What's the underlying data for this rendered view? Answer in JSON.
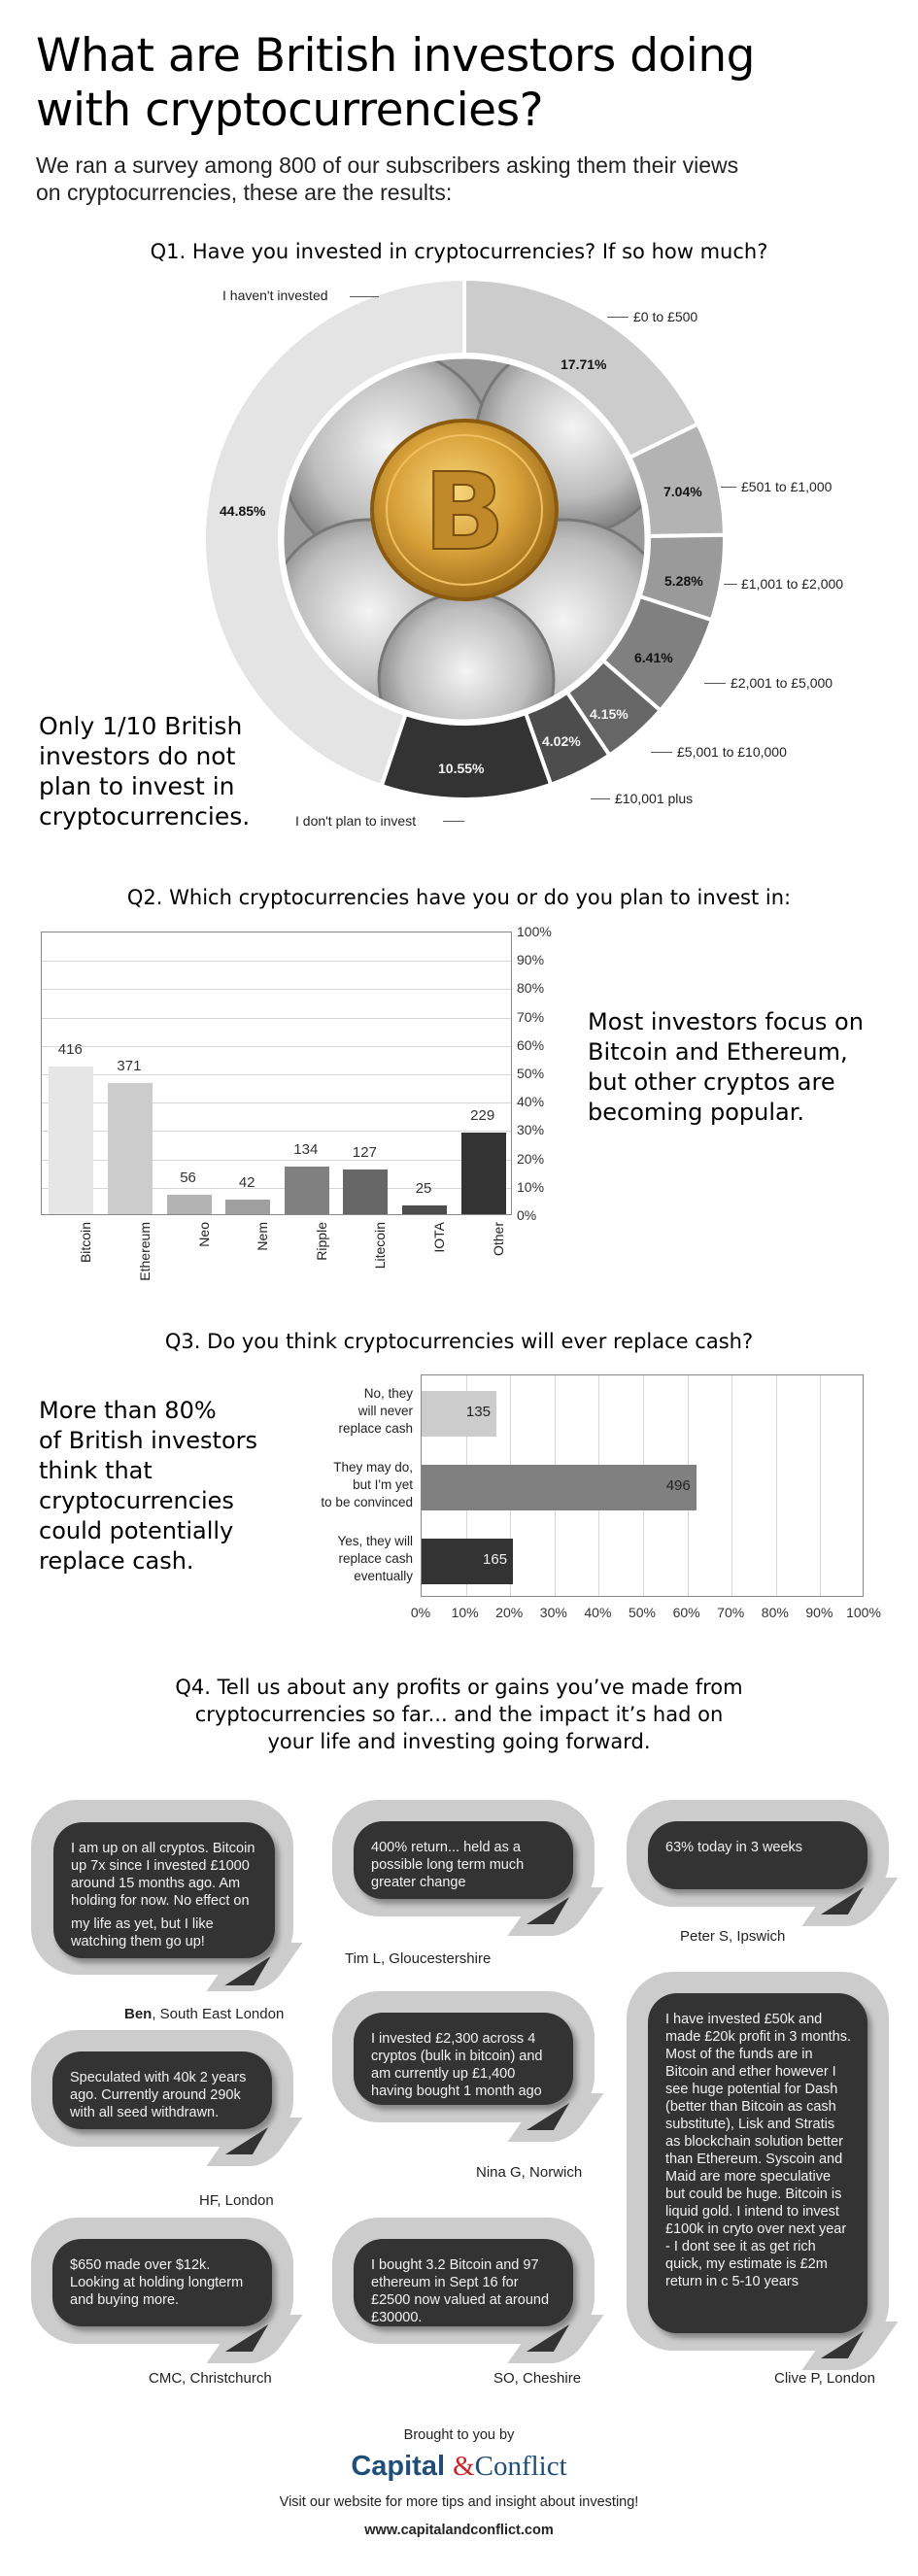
{
  "header": {
    "title_line1": "What are British investors doing",
    "title_line2": "with cryptocurrencies?",
    "subtitle_line1": "We ran a survey among 800 of our subscribers asking them their views",
    "subtitle_line2": "on cryptocurrencies, these are the results:"
  },
  "q1": {
    "title": "Q1. Have you invested in cryptocurrencies? If so how much?",
    "callout": [
      "Only 1/10 British",
      "investors do not",
      "plan to invest in",
      "cryptocurrencies."
    ],
    "center_image": "bitcoin-coins-photo",
    "segments": [
      {
        "label": "I haven't invested",
        "pct": "44.85%",
        "color": "#e4e4e4"
      },
      {
        "label": "£0 to £500",
        "pct": "17.71%",
        "color": "#cccccc"
      },
      {
        "label": "£501 to £1,000",
        "pct": "7.04%",
        "color": "#b3b3b3"
      },
      {
        "label": "£1,001 to £2,000",
        "pct": "5.28%",
        "color": "#9a9a9a"
      },
      {
        "label": "£2,001 to £5,000",
        "pct": "6.41%",
        "color": "#808080"
      },
      {
        "label": "£5,001 to £10,000",
        "pct": "4.15%",
        "color": "#666666"
      },
      {
        "label": "£10,001 plus",
        "pct": "4.02%",
        "color": "#4d4d4d"
      },
      {
        "label": "I don't plan to invest",
        "pct": "10.55%",
        "color": "#333333"
      }
    ]
  },
  "q2": {
    "title": "Q2. Which cryptocurrencies have you or do you plan to invest in:",
    "callout": [
      "Most investors focus on",
      "Bitcoin and Ethereum,",
      "but other cryptos are",
      "becoming popular."
    ],
    "yticks": [
      "100%",
      "90%",
      "80%",
      "70%",
      "60%",
      "50%",
      "40%",
      "30%",
      "20%",
      "10%",
      "0%"
    ]
  },
  "q3": {
    "title": "Q3. Do you think cryptocurrencies will ever replace cash?",
    "callout": [
      "More than 80%",
      "of British investors",
      "think that",
      "cryptocurrencies",
      "could potentially",
      "replace cash."
    ],
    "xticks": [
      "0%",
      "10%",
      "20%",
      "30%",
      "40%",
      "50%",
      "60%",
      "70%",
      "80%",
      "90%",
      "100%"
    ]
  },
  "q4": {
    "title_line1": "Q4. Tell us about any profits or gains you’ve made from",
    "title_line2": "cryptocurrencies so far... and the impact it’s had on",
    "title_line3": "your life and investing going forward.",
    "testimonials": [
      {
        "text_a": "I am up on all cryptos. Bitcoin up 7x since I invested £1000 around 15 months ago. Am holding for now. No effect on",
        "text_b": "my life as yet, but I like watching them go up!",
        "name": "Ben",
        "location": ", South East London"
      },
      {
        "text": "400% return... held as a possible long term much greater change",
        "author": "Tim L, Gloucestershire"
      },
      {
        "text": "63% today in 3 weeks",
        "author": "Peter S, Ipswich"
      },
      {
        "text": "Speculated with 40k 2 years ago. Currently around 290k with all seed withdrawn.",
        "author": "HF, London"
      },
      {
        "text": "I invested £2,300 across 4 cryptos (bulk in bitcoin) and am currently up £1,400 having bought 1 month ago",
        "author": "Nina G, Norwich"
      },
      {
        "text": "I have invested £50k and made £20k profit in 3 months. Most of the funds are in Bitcoin and ether however I see huge potential for Dash (better than Bitcoin as cash substitute), Lisk and Stratis as blockchain solution better than Ethereum. Syscoin and Maid are more speculative but could be huge. Bitcoin is liquid gold. I intend to invest £100k in cryto over next year - I dont see it as get rich quick, my estimate is £2m return in c 5-10 years",
        "author": "Clive P, London"
      },
      {
        "text": "$650 made over $12k. Looking at holding longterm and buying more.",
        "author": "CMC, Christchurch"
      },
      {
        "text": "I bought 3.2 Bitcoin and 97 ethereum in Sept 16 for £2500 now valued at around £30000.",
        "author": "SO, Cheshire"
      }
    ]
  },
  "footer": {
    "brought_by": "Brought to you by",
    "brand_part1": "Capital",
    "brand_amp": "&",
    "brand_part2": "Conflict",
    "brand_color": "#1f4e79",
    "amp_color": "#d0202a",
    "tagline": "Visit our website for more tips and insight about investing!",
    "url": "www.capitalandconflict.com"
  },
  "chart_data": [
    {
      "type": "pie",
      "title": "Q1. Have you invested in cryptocurrencies? If so how much?",
      "categories": [
        "I haven't invested",
        "£0 to £500",
        "£501 to £1,000",
        "£1,001 to £2,000",
        "£2,001 to £5,000",
        "£5,001 to £10,000",
        "£10,001 plus",
        "I don't plan to invest"
      ],
      "values": [
        44.85,
        17.71,
        7.04,
        5.28,
        6.41,
        4.15,
        4.02,
        10.55
      ],
      "unit": "%",
      "variant": "donut"
    },
    {
      "type": "bar",
      "title": "Q2. Which cryptocurrencies have you or do you plan to invest in:",
      "categories": [
        "Bitcoin",
        "Ethereum",
        "Neo",
        "Nem",
        "Ripple",
        "Litecoin",
        "IOTA",
        "Other"
      ],
      "values": [
        416,
        371,
        56,
        42,
        134,
        127,
        25,
        229
      ],
      "colors": [
        "#e6e6e6",
        "#cccccc",
        "#b3b3b3",
        "#9f9f9f",
        "#808080",
        "#666666",
        "#4d4d4d",
        "#333333"
      ],
      "xlabel": "",
      "ylabel": "",
      "ylim": [
        0,
        100
      ],
      "ytick_unit": "%",
      "total_respondents": 800,
      "grid": true,
      "yaxis_position": "right"
    },
    {
      "type": "bar",
      "orientation": "horizontal",
      "title": "Q3. Do you think cryptocurrencies will ever replace cash?",
      "categories": [
        "No, they will never replace cash",
        "They may do, but I'm yet to be convinced",
        "Yes, they will replace cash eventually"
      ],
      "values": [
        135,
        496,
        165
      ],
      "colors": [
        "#cccccc",
        "#808080",
        "#333333"
      ],
      "xlim": [
        0,
        100
      ],
      "xtick_unit": "%",
      "total_respondents": 800,
      "grid": true
    }
  ]
}
